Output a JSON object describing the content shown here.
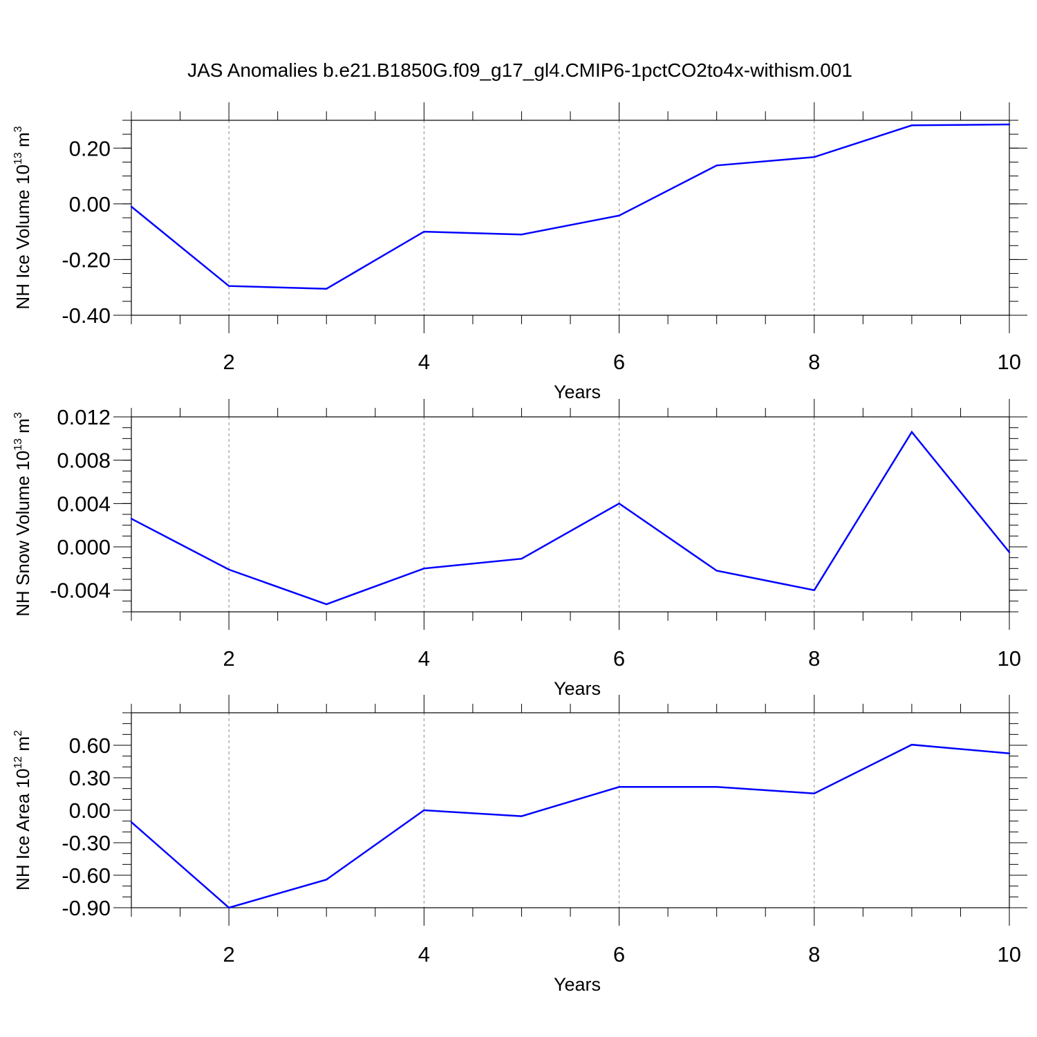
{
  "title": "JAS Anomalies b.e21.B1850G.f09_g17_gl4.CMIP6-1pctCO2to4x-withism.001",
  "line_color": "#0000ff",
  "chart_data": [
    {
      "type": "line",
      "ylabel": "NH Ice Volume 10",
      "ylabel_exp": "13",
      "ylabel_unit": " m",
      "ylabel_unit_exp": "3",
      "xlabel": "Years",
      "xlim": [
        1,
        10
      ],
      "ylim": [
        -0.4,
        0.3
      ],
      "yticks": [
        -0.4,
        -0.2,
        0.0,
        0.2
      ],
      "ytick_labels": [
        "-0.40",
        "-0.20",
        "0.00",
        "0.20"
      ],
      "yminor_step": 0.05,
      "xticks": [
        2,
        4,
        6,
        8,
        10
      ],
      "xtick_labels": [
        "2",
        "4",
        "6",
        "8",
        "10"
      ],
      "grid": "dashed vertical at major x ticks",
      "x": [
        1,
        2,
        3,
        4,
        5,
        6,
        7,
        8,
        9,
        10
      ],
      "values": [
        -0.01,
        -0.295,
        -0.305,
        -0.1,
        -0.11,
        -0.042,
        0.138,
        0.168,
        0.282,
        0.285
      ]
    },
    {
      "type": "line",
      "ylabel": "NH Snow Volume 10",
      "ylabel_exp": "13",
      "ylabel_unit": " m",
      "ylabel_unit_exp": "3",
      "xlabel": "Years",
      "xlim": [
        1,
        10
      ],
      "ylim": [
        -0.006,
        0.012
      ],
      "yticks": [
        -0.004,
        0.0,
        0.004,
        0.008,
        0.012
      ],
      "ytick_labels": [
        "-0.004",
        "0.000",
        "0.004",
        "0.008",
        "0.012"
      ],
      "yminor_step": 0.001,
      "xticks": [
        2,
        4,
        6,
        8,
        10
      ],
      "xtick_labels": [
        "2",
        "4",
        "6",
        "8",
        "10"
      ],
      "grid": "dashed vertical at major x ticks",
      "x": [
        1,
        2,
        3,
        4,
        5,
        6,
        7,
        8,
        9,
        10
      ],
      "values": [
        0.0026,
        -0.0021,
        -0.0053,
        -0.002,
        -0.0011,
        0.004,
        -0.0022,
        -0.004,
        0.0106,
        -0.0005
      ]
    },
    {
      "type": "line",
      "ylabel": "NH Ice Area 10",
      "ylabel_exp": "12",
      "ylabel_unit": " m",
      "ylabel_unit_exp": "2",
      "xlabel": "Years",
      "xlim": [
        1,
        10
      ],
      "ylim": [
        -0.9,
        0.9
      ],
      "yticks": [
        -0.9,
        -0.6,
        -0.3,
        0.0,
        0.3,
        0.6
      ],
      "ytick_labels": [
        "-0.90",
        "-0.60",
        "-0.30",
        "0.00",
        "0.30",
        "0.60"
      ],
      "yminor_step": 0.1,
      "xticks": [
        2,
        4,
        6,
        8,
        10
      ],
      "xtick_labels": [
        "2",
        "4",
        "6",
        "8",
        "10"
      ],
      "grid": "dashed vertical at major x ticks",
      "x": [
        1,
        2,
        3,
        4,
        5,
        6,
        7,
        8,
        9,
        10
      ],
      "values": [
        -0.11,
        -0.9,
        -0.64,
        0.0,
        -0.055,
        0.215,
        0.215,
        0.155,
        0.605,
        0.525
      ]
    }
  ]
}
